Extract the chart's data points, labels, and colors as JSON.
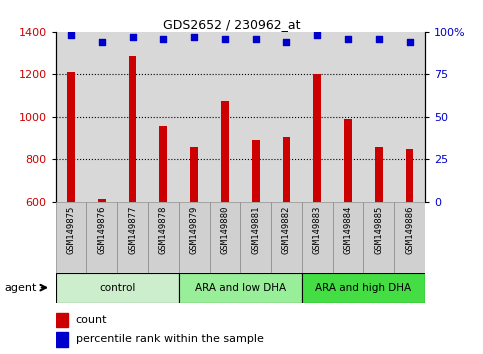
{
  "title": "GDS2652 / 230962_at",
  "samples": [
    "GSM149875",
    "GSM149876",
    "GSM149877",
    "GSM149878",
    "GSM149879",
    "GSM149880",
    "GSM149881",
    "GSM149882",
    "GSM149883",
    "GSM149884",
    "GSM149885",
    "GSM149886"
  ],
  "counts": [
    1210,
    615,
    1285,
    955,
    860,
    1075,
    890,
    905,
    1200,
    990,
    860,
    850
  ],
  "percentile": [
    98,
    94,
    97,
    96,
    97,
    96,
    96,
    94,
    98,
    96,
    96,
    94
  ],
  "ylim_left": [
    600,
    1400
  ],
  "ylim_right": [
    0,
    100
  ],
  "yticks_left": [
    600,
    800,
    1000,
    1200,
    1400
  ],
  "yticks_right": [
    0,
    25,
    50,
    75,
    100
  ],
  "grid_values": [
    800,
    1000,
    1200
  ],
  "bar_color": "#cc0000",
  "dot_color": "#0000cc",
  "left_tick_color": "#cc0000",
  "right_tick_color": "#0000cc",
  "groups": [
    {
      "label": "control",
      "start": 0,
      "end": 3,
      "color": "#cceecc"
    },
    {
      "label": "ARA and low DHA",
      "start": 4,
      "end": 7,
      "color": "#99ee99"
    },
    {
      "label": "ARA and high DHA",
      "start": 8,
      "end": 11,
      "color": "#44dd44"
    }
  ],
  "agent_label": "agent",
  "legend_count_label": "count",
  "legend_pct_label": "percentile rank within the sample",
  "plot_bg_color": "#d8d8d8",
  "xtick_bg_color": "#d0d0d0"
}
